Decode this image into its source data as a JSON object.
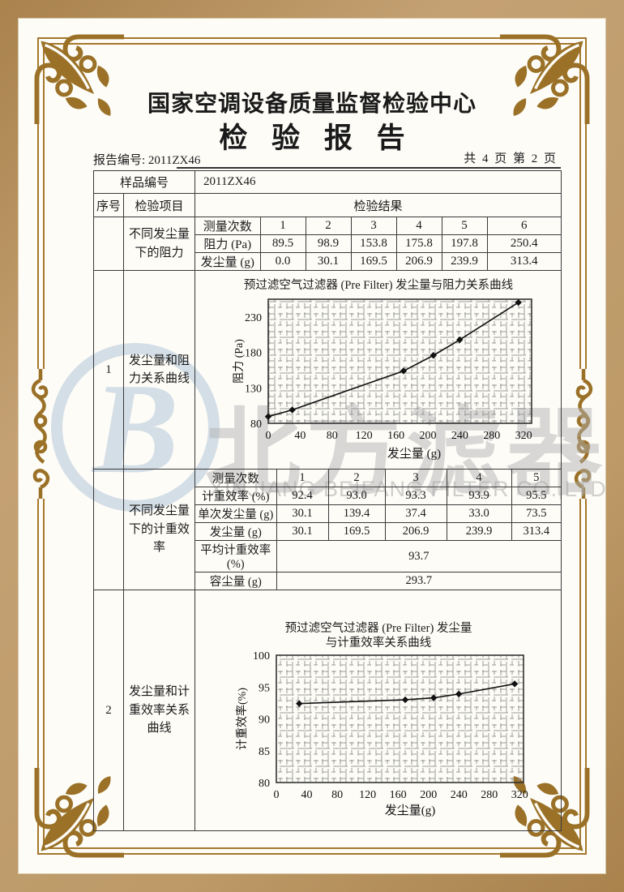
{
  "header": {
    "org": "国家空调设备质量监督检验中心",
    "title": "检验报告",
    "report_no_label": "报告编号:",
    "report_no": "2011ZX46",
    "pages": "共 4 页 第 2 页"
  },
  "sample": {
    "label": "样品编号",
    "value": "2011ZX46"
  },
  "columns": {
    "seq": "序号",
    "item": "检验项目",
    "result": "检验结果"
  },
  "item1": {
    "seq": "1",
    "label_top": "不同发尘量下的阻力",
    "label_bottom": "发尘量和阻力关系曲线"
  },
  "item2": {
    "seq": "2",
    "label_top": "不同发尘量下的计重效率",
    "label_bottom": "发尘量和计重效率关系曲线"
  },
  "table1": {
    "header_label": "测量次数",
    "header_values": [
      "1",
      "2",
      "3",
      "4",
      "5",
      "6"
    ],
    "rows": [
      {
        "label": "阻力 (Pa)",
        "values": [
          "89.5",
          "98.9",
          "153.8",
          "175.8",
          "197.8",
          "250.4"
        ]
      },
      {
        "label": "发尘量 (g)",
        "values": [
          "0.0",
          "30.1",
          "169.5",
          "206.9",
          "239.9",
          "313.4"
        ]
      }
    ]
  },
  "table2": {
    "header_label": "测量次数",
    "header_values": [
      "1",
      "2",
      "3",
      "4",
      "5"
    ],
    "rows": [
      {
        "label": "计重效率 (%)",
        "values": [
          "92.4",
          "93.0",
          "93.3",
          "93.9",
          "95.5"
        ]
      },
      {
        "label": "单次发尘量 (g)",
        "values": [
          "30.1",
          "139.4",
          "37.4",
          "33.0",
          "73.5"
        ]
      },
      {
        "label": "发尘量 (g)",
        "values": [
          "30.1",
          "169.5",
          "206.9",
          "239.9",
          "313.4"
        ]
      }
    ],
    "summary": [
      {
        "label": "平均计重效率 (%)",
        "value": "93.7"
      },
      {
        "label": "容尘量 (g)",
        "value": "293.7"
      }
    ]
  },
  "watermark": {
    "logo_letter": "B",
    "cn": "北方滤器",
    "en": "XINJIANG BEIFANG FILTER CO.,LTD"
  },
  "chart_data": [
    {
      "type": "line",
      "title": "预过滤空气过滤器 (Pre Filter) 发尘量与阻力关系曲线",
      "xlabel": "发尘量 (g)",
      "ylabel": "阻力 (Pa)",
      "x": [
        0,
        30.1,
        169.5,
        206.9,
        239.9,
        313.4
      ],
      "y": [
        89.5,
        98.9,
        153.8,
        175.8,
        197.8,
        250.4
      ],
      "xlim": [
        0,
        330
      ],
      "ylim": [
        80,
        255
      ],
      "xticks": [
        0,
        40,
        80,
        120,
        160,
        200,
        240,
        280,
        320
      ],
      "yticks": [
        80,
        130,
        180,
        230
      ],
      "grid": "dense-minor-crosshatch",
      "marker": "diamond",
      "line_color": "#111111"
    },
    {
      "type": "line",
      "title": "预过滤空气过滤器 (Pre Filter) 发尘量与计重效率关系曲线",
      "title_line1": "预过滤空气过滤器 (Pre Filter) 发尘量",
      "title_line2": "与计重效率关系曲线",
      "xlabel": "发尘量(g)",
      "ylabel": "计重效率(%)",
      "x": [
        30.1,
        169.5,
        206.9,
        239.9,
        313.4
      ],
      "y": [
        92.4,
        93.0,
        93.3,
        93.9,
        95.5
      ],
      "xlim": [
        0,
        325
      ],
      "ylim": [
        80,
        100
      ],
      "xticks": [
        0,
        40,
        80,
        120,
        160,
        200,
        240,
        280,
        320
      ],
      "yticks": [
        80,
        85,
        90,
        95,
        100
      ],
      "grid": "dense-minor-crosshatch",
      "marker": "diamond",
      "line_color": "#111111"
    }
  ]
}
